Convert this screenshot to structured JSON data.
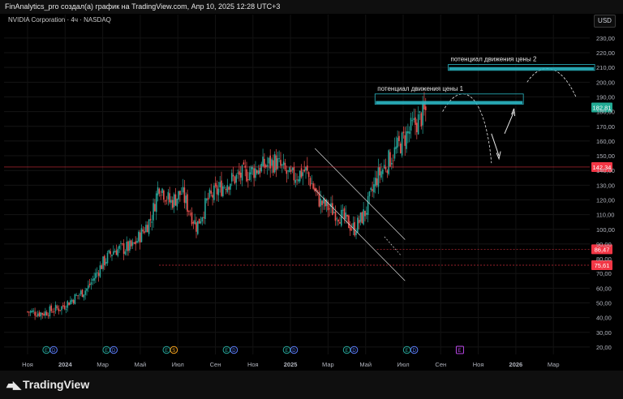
{
  "header": {
    "text": "FinAnalytics_pro создал(а) график на TradingView.com, Апр 10, 2025 12:28 UTC+3"
  },
  "symbol": {
    "title": "NVIDIA Corporation · 4ч · NASDAQ"
  },
  "currency": "USD",
  "brand": {
    "name": "TradingView"
  },
  "colors": {
    "background": "#000000",
    "up": "#26a69a",
    "down": "#ef5350",
    "zone": "#2bb7c4",
    "last_price": "#22ab94",
    "level": "#f23645",
    "channel": "#d9d9d9"
  },
  "chart_data": {
    "type": "candlestick",
    "x": [
      "Ноя",
      "2024",
      "Мар",
      "Май",
      "Июл",
      "Сен",
      "Ноя",
      "2025",
      "Мар",
      "Май",
      "Июл",
      "Сен",
      "Ноя",
      "2026",
      "Мар"
    ],
    "y_ticks": [
      "230,00",
      "220,00",
      "210,00",
      "200,00",
      "190,00",
      "180,00",
      "170,00",
      "160,00",
      "150,00",
      "140,00",
      "130,00",
      "120,00",
      "110,00",
      "100,00",
      "90,00",
      "80,00",
      "70,00",
      "60,00",
      "50,00",
      "40,00",
      "30,00",
      "20,00"
    ],
    "ylim": [
      15,
      236
    ],
    "last_price": "182,81",
    "price_levels": [
      {
        "value": 142.34,
        "label": "142,34",
        "style": "solid"
      },
      {
        "value": 86.47,
        "label": "86,47",
        "style": "dashed"
      },
      {
        "value": 75.61,
        "label": "75,61",
        "style": "dashed"
      }
    ],
    "anchors": [
      {
        "x": 0,
        "y": 44
      },
      {
        "x": 0.4,
        "y": 43
      },
      {
        "x": 0.9,
        "y": 47
      },
      {
        "x": 1.6,
        "y": 60
      },
      {
        "x": 2.0,
        "y": 77
      },
      {
        "x": 2.3,
        "y": 86
      },
      {
        "x": 2.8,
        "y": 88
      },
      {
        "x": 3.3,
        "y": 108
      },
      {
        "x": 3.5,
        "y": 131
      },
      {
        "x": 3.8,
        "y": 118
      },
      {
        "x": 4.1,
        "y": 125
      },
      {
        "x": 4.5,
        "y": 102
      },
      {
        "x": 4.8,
        "y": 120
      },
      {
        "x": 5.3,
        "y": 132
      },
      {
        "x": 5.8,
        "y": 138
      },
      {
        "x": 6.2,
        "y": 142
      },
      {
        "x": 6.6,
        "y": 146
      },
      {
        "x": 7.0,
        "y": 135
      },
      {
        "x": 7.4,
        "y": 140
      },
      {
        "x": 7.8,
        "y": 118
      },
      {
        "x": 8.3,
        "y": 110
      },
      {
        "x": 8.7,
        "y": 100
      },
      {
        "x": 9.0,
        "y": 112
      },
      {
        "x": 9.3,
        "y": 135
      },
      {
        "x": 9.7,
        "y": 150
      },
      {
        "x": 10.2,
        "y": 168
      },
      {
        "x": 10.6,
        "y": 180
      }
    ],
    "zones": [
      {
        "label": "потенциал движения цены 1",
        "low": 185,
        "high": 192
      },
      {
        "label": "потенциал движения цены 2",
        "low": 208,
        "high": 212
      }
    ],
    "earnings_markers": [
      {
        "x": 0.5,
        "labels": [
          "E",
          "D"
        ]
      },
      {
        "x": 2.1,
        "labels": [
          "E",
          "D"
        ]
      },
      {
        "x": 3.7,
        "labels": [
          "E",
          "S"
        ]
      },
      {
        "x": 5.3,
        "labels": [
          "E",
          "D"
        ]
      },
      {
        "x": 6.9,
        "labels": [
          "E",
          "D"
        ]
      },
      {
        "x": 8.5,
        "labels": [
          "E",
          "D"
        ]
      },
      {
        "x": 10.1,
        "labels": [
          "E",
          "D"
        ]
      },
      {
        "x": 11.5,
        "labels": [
          "E"
        ]
      }
    ]
  }
}
